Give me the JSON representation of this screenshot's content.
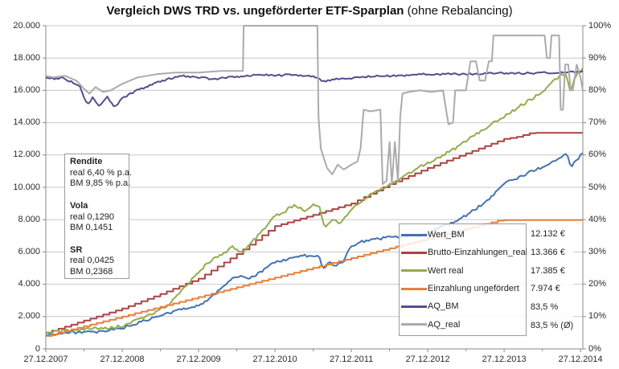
{
  "title": {
    "bold": "Vergleich DWS TRD vs. ungeförderter ETF-Sparplan",
    "normal": " (ohne Rebalancing)"
  },
  "stats_box": {
    "lines": [
      {
        "text": "Rendite",
        "bold": true
      },
      {
        "text": "real 6,40 % p.a.",
        "bold": false
      },
      {
        "text": "BM 9,85 % p.a.",
        "bold": false
      },
      {
        "text": "",
        "bold": false
      },
      {
        "text": "Vola",
        "bold": true
      },
      {
        "text": "real 0,1290",
        "bold": false
      },
      {
        "text": "BM 0,1451",
        "bold": false
      },
      {
        "text": "",
        "bold": false
      },
      {
        "text": "SR",
        "bold": true
      },
      {
        "text": "real 0,0425",
        "bold": false
      },
      {
        "text": "BM 0,2368",
        "bold": false
      }
    ]
  },
  "legend": {
    "items": [
      {
        "label": "Wert_BM",
        "value": "12.132 €",
        "color": "#4472B0"
      },
      {
        "label": "Brutto-Einzahlungen_real",
        "value": "13.366 €",
        "color": "#A94442"
      },
      {
        "label": "Wert real",
        "value": "17.385 €",
        "color": "#93AC4E"
      },
      {
        "label": "Einzahlung ungefördert",
        "value": "7.974 €",
        "color": "#E5803C"
      },
      {
        "label": "AQ_BM",
        "value": "83,5 %",
        "color": "#5B4A8E"
      },
      {
        "label": "AQ_real",
        "value": "83,5 % (Ø)",
        "color": "#ABABAB"
      }
    ]
  },
  "chart_data": {
    "type": "line",
    "title": "Vergleich DWS TRD vs. ungeförderter ETF-Sparplan (ohne Rebalancing)",
    "x_tick_labels": [
      "27.12.2007",
      "27.12.2008",
      "27.12.2009",
      "27.12.2010",
      "27.12.2011",
      "27.12.2012",
      "27.12.2013",
      "27.12.2014"
    ],
    "x_years_span": 7.03,
    "grid": true,
    "legend_position": "inside-right",
    "left_axis": {
      "min": 0,
      "max": 20000,
      "step": 2000,
      "tick_labels": [
        "0",
        "2.000",
        "4.000",
        "6.000",
        "8.000",
        "10.000",
        "12.000",
        "14.000",
        "16.000",
        "18.000",
        "20.000"
      ]
    },
    "right_axis": {
      "min": 0,
      "max": 100,
      "step": 10,
      "tick_labels": [
        "0%",
        "10%",
        "20%",
        "30%",
        "40%",
        "50%",
        "60%",
        "70%",
        "80%",
        "90%",
        "100%"
      ]
    },
    "series": [
      {
        "id": "wert-bm",
        "name": "Wert_BM",
        "axis": "left",
        "style": "noisy",
        "amp": 80,
        "seed": 3,
        "color": "#4472B0",
        "final_value": 12132,
        "points": [
          [
            0,
            850
          ],
          [
            0.15,
            950
          ],
          [
            0.3,
            1000
          ],
          [
            0.5,
            1050
          ],
          [
            0.65,
            1000
          ],
          [
            0.8,
            1120
          ],
          [
            1.0,
            1300
          ],
          [
            1.15,
            1500
          ],
          [
            1.3,
            1750
          ],
          [
            1.5,
            2050
          ],
          [
            1.7,
            2350
          ],
          [
            1.9,
            2600
          ],
          [
            2.0,
            2700
          ],
          [
            2.15,
            3100
          ],
          [
            2.3,
            3800
          ],
          [
            2.45,
            4400
          ],
          [
            2.55,
            4500
          ],
          [
            2.65,
            4300
          ],
          [
            2.8,
            4700
          ],
          [
            3.0,
            5400
          ],
          [
            3.15,
            5500
          ],
          [
            3.35,
            5800
          ],
          [
            3.5,
            5700
          ],
          [
            3.57,
            5820
          ],
          [
            3.63,
            5000
          ],
          [
            3.72,
            5350
          ],
          [
            3.8,
            5150
          ],
          [
            3.9,
            5450
          ],
          [
            4.0,
            6400
          ],
          [
            4.15,
            6650
          ],
          [
            4.3,
            6750
          ],
          [
            4.45,
            6900
          ],
          [
            4.6,
            6950
          ],
          [
            4.8,
            7000
          ],
          [
            5.0,
            7100
          ],
          [
            5.2,
            7600
          ],
          [
            5.45,
            8100
          ],
          [
            5.7,
            8900
          ],
          [
            5.85,
            9500
          ],
          [
            6.0,
            10300
          ],
          [
            6.2,
            10600
          ],
          [
            6.35,
            11000
          ],
          [
            6.55,
            11300
          ],
          [
            6.7,
            11800
          ],
          [
            6.82,
            12050
          ],
          [
            6.88,
            11250
          ],
          [
            6.93,
            11600
          ],
          [
            7.03,
            12132
          ]
        ]
      },
      {
        "id": "brutto-einzahlungen-real",
        "name": "Brutto-Einzahlungen_real",
        "axis": "left",
        "style": "step",
        "amp": 0,
        "seed": 5,
        "color": "#A94442",
        "final_value": 13366,
        "points": [
          [
            0,
            1000
          ],
          [
            0.5,
            1750
          ],
          [
            1.0,
            2500
          ],
          [
            1.5,
            3400
          ],
          [
            2.0,
            4350
          ],
          [
            2.45,
            5700
          ],
          [
            3.0,
            7600
          ],
          [
            3.5,
            8300
          ],
          [
            4.0,
            9000
          ],
          [
            4.5,
            10200
          ],
          [
            5.0,
            11200
          ],
          [
            5.5,
            12100
          ],
          [
            6.0,
            13000
          ],
          [
            6.15,
            13100
          ],
          [
            6.35,
            13366
          ],
          [
            7.03,
            13366
          ]
        ]
      },
      {
        "id": "wert-real",
        "name": "Wert real",
        "axis": "left",
        "style": "noisy",
        "amp": 90,
        "seed": 7,
        "color": "#93AC4E",
        "final_value": 17385,
        "points": [
          [
            0,
            950
          ],
          [
            0.2,
            1100
          ],
          [
            0.4,
            1200
          ],
          [
            0.6,
            1250
          ],
          [
            0.8,
            1300
          ],
          [
            1.0,
            1400
          ],
          [
            1.2,
            1800
          ],
          [
            1.4,
            2200
          ],
          [
            1.6,
            2700
          ],
          [
            1.8,
            3700
          ],
          [
            2.0,
            4800
          ],
          [
            2.2,
            5600
          ],
          [
            2.35,
            6000
          ],
          [
            2.45,
            6300
          ],
          [
            2.55,
            5900
          ],
          [
            2.7,
            6600
          ],
          [
            2.85,
            7400
          ],
          [
            3.0,
            8260
          ],
          [
            3.1,
            8400
          ],
          [
            3.25,
            8900
          ],
          [
            3.4,
            8500
          ],
          [
            3.5,
            8900
          ],
          [
            3.57,
            8950
          ],
          [
            3.65,
            7500
          ],
          [
            3.75,
            8050
          ],
          [
            3.85,
            7750
          ],
          [
            4.0,
            8600
          ],
          [
            4.2,
            9400
          ],
          [
            4.4,
            9900
          ],
          [
            4.6,
            10400
          ],
          [
            4.8,
            11000
          ],
          [
            5.0,
            11500
          ],
          [
            5.2,
            12000
          ],
          [
            5.4,
            12500
          ],
          [
            5.6,
            13200
          ],
          [
            5.8,
            13800
          ],
          [
            6.0,
            14400
          ],
          [
            6.2,
            15000
          ],
          [
            6.4,
            15600
          ],
          [
            6.55,
            16100
          ],
          [
            6.7,
            16800
          ],
          [
            6.8,
            17050
          ],
          [
            6.87,
            15900
          ],
          [
            6.93,
            16900
          ],
          [
            7.03,
            17385
          ]
        ]
      },
      {
        "id": "einzahlung-ungefoerdert",
        "name": "Einzahlung ungefördert",
        "axis": "left",
        "style": "step",
        "amp": 0,
        "seed": 9,
        "color": "#E5803C",
        "final_value": 7974,
        "points": [
          [
            0,
            800
          ],
          [
            5.95,
            7974
          ],
          [
            7.03,
            7974
          ]
        ]
      },
      {
        "id": "aq-bm",
        "name": "AQ_BM",
        "axis": "right",
        "style": "noisy",
        "amp": 0.3,
        "seed": 11,
        "color": "#5B4A8E",
        "final_value": 86,
        "points": [
          [
            0,
            84
          ],
          [
            0.1,
            83.5
          ],
          [
            0.2,
            84
          ],
          [
            0.35,
            82.5
          ],
          [
            0.45,
            81
          ],
          [
            0.5,
            78
          ],
          [
            0.55,
            75.5
          ],
          [
            0.62,
            78
          ],
          [
            0.7,
            75
          ],
          [
            0.8,
            78
          ],
          [
            0.9,
            74.5
          ],
          [
            1.0,
            77.5
          ],
          [
            1.15,
            79.5
          ],
          [
            1.35,
            81.5
          ],
          [
            1.6,
            83.5
          ],
          [
            1.8,
            84.5
          ],
          [
            2.0,
            84
          ],
          [
            2.2,
            83.5
          ],
          [
            2.4,
            84
          ],
          [
            2.6,
            84.5
          ],
          [
            2.8,
            85
          ],
          [
            3.0,
            84.5
          ],
          [
            3.2,
            85
          ],
          [
            3.4,
            84.5
          ],
          [
            3.55,
            84
          ],
          [
            3.65,
            82.5
          ],
          [
            3.75,
            83.5
          ],
          [
            3.9,
            83.5
          ],
          [
            4.1,
            84
          ],
          [
            4.3,
            84.5
          ],
          [
            4.6,
            84.5
          ],
          [
            4.9,
            85
          ],
          [
            5.2,
            85
          ],
          [
            5.5,
            85
          ],
          [
            5.8,
            85.2
          ],
          [
            6.1,
            85.3
          ],
          [
            6.4,
            85.4
          ],
          [
            6.7,
            85.5
          ],
          [
            6.9,
            85.7
          ],
          [
            7.03,
            86
          ]
        ]
      },
      {
        "id": "aq-real",
        "name": "AQ_real",
        "axis": "right",
        "style": "plain",
        "amp": 0,
        "seed": 13,
        "color": "#ABABAB",
        "final_value": 83.5,
        "points": [
          [
            0,
            84.5
          ],
          [
            0.1,
            84
          ],
          [
            0.25,
            84.5
          ],
          [
            0.4,
            83
          ],
          [
            0.5,
            80.5
          ],
          [
            0.57,
            79
          ],
          [
            0.65,
            81
          ],
          [
            0.75,
            79.5
          ],
          [
            0.85,
            80
          ],
          [
            1.0,
            82
          ],
          [
            1.2,
            84
          ],
          [
            1.45,
            85
          ],
          [
            1.7,
            85.5
          ],
          [
            2.0,
            85.5
          ],
          [
            2.3,
            86
          ],
          [
            2.58,
            86
          ],
          [
            2.59,
            100
          ],
          [
            3.555,
            100
          ],
          [
            3.57,
            72
          ],
          [
            3.6,
            62
          ],
          [
            3.68,
            56
          ],
          [
            3.75,
            54
          ],
          [
            3.82,
            57
          ],
          [
            3.9,
            55.5
          ],
          [
            4.0,
            57
          ],
          [
            4.08,
            58
          ],
          [
            4.12,
            62
          ],
          [
            4.16,
            74
          ],
          [
            4.25,
            73.5
          ],
          [
            4.38,
            74
          ],
          [
            4.41,
            51
          ],
          [
            4.46,
            52
          ],
          [
            4.5,
            64
          ],
          [
            4.53,
            51
          ],
          [
            4.57,
            64
          ],
          [
            4.61,
            52
          ],
          [
            4.64,
            72
          ],
          [
            4.67,
            79
          ],
          [
            4.75,
            79.5
          ],
          [
            4.9,
            80
          ],
          [
            5.05,
            79.5
          ],
          [
            5.2,
            80
          ],
          [
            5.27,
            69.5
          ],
          [
            5.33,
            70
          ],
          [
            5.36,
            80
          ],
          [
            5.5,
            80
          ],
          [
            5.56,
            89
          ],
          [
            5.63,
            89
          ],
          [
            5.68,
            83
          ],
          [
            5.75,
            83
          ],
          [
            5.8,
            89
          ],
          [
            5.84,
            89
          ],
          [
            5.86,
            97
          ],
          [
            6.53,
            97
          ],
          [
            6.56,
            90
          ],
          [
            6.6,
            90
          ],
          [
            6.62,
            97
          ],
          [
            6.72,
            97
          ],
          [
            6.74,
            74
          ],
          [
            6.77,
            74
          ],
          [
            6.8,
            88
          ],
          [
            6.84,
            88
          ],
          [
            6.87,
            80
          ],
          [
            6.9,
            80
          ],
          [
            6.95,
            88
          ],
          [
            7.0,
            84
          ],
          [
            7.03,
            80
          ]
        ]
      }
    ],
    "colors": {
      "grid": "#C9C9C9",
      "axis": "#898989",
      "tick_text": "#2b2b2b"
    }
  }
}
